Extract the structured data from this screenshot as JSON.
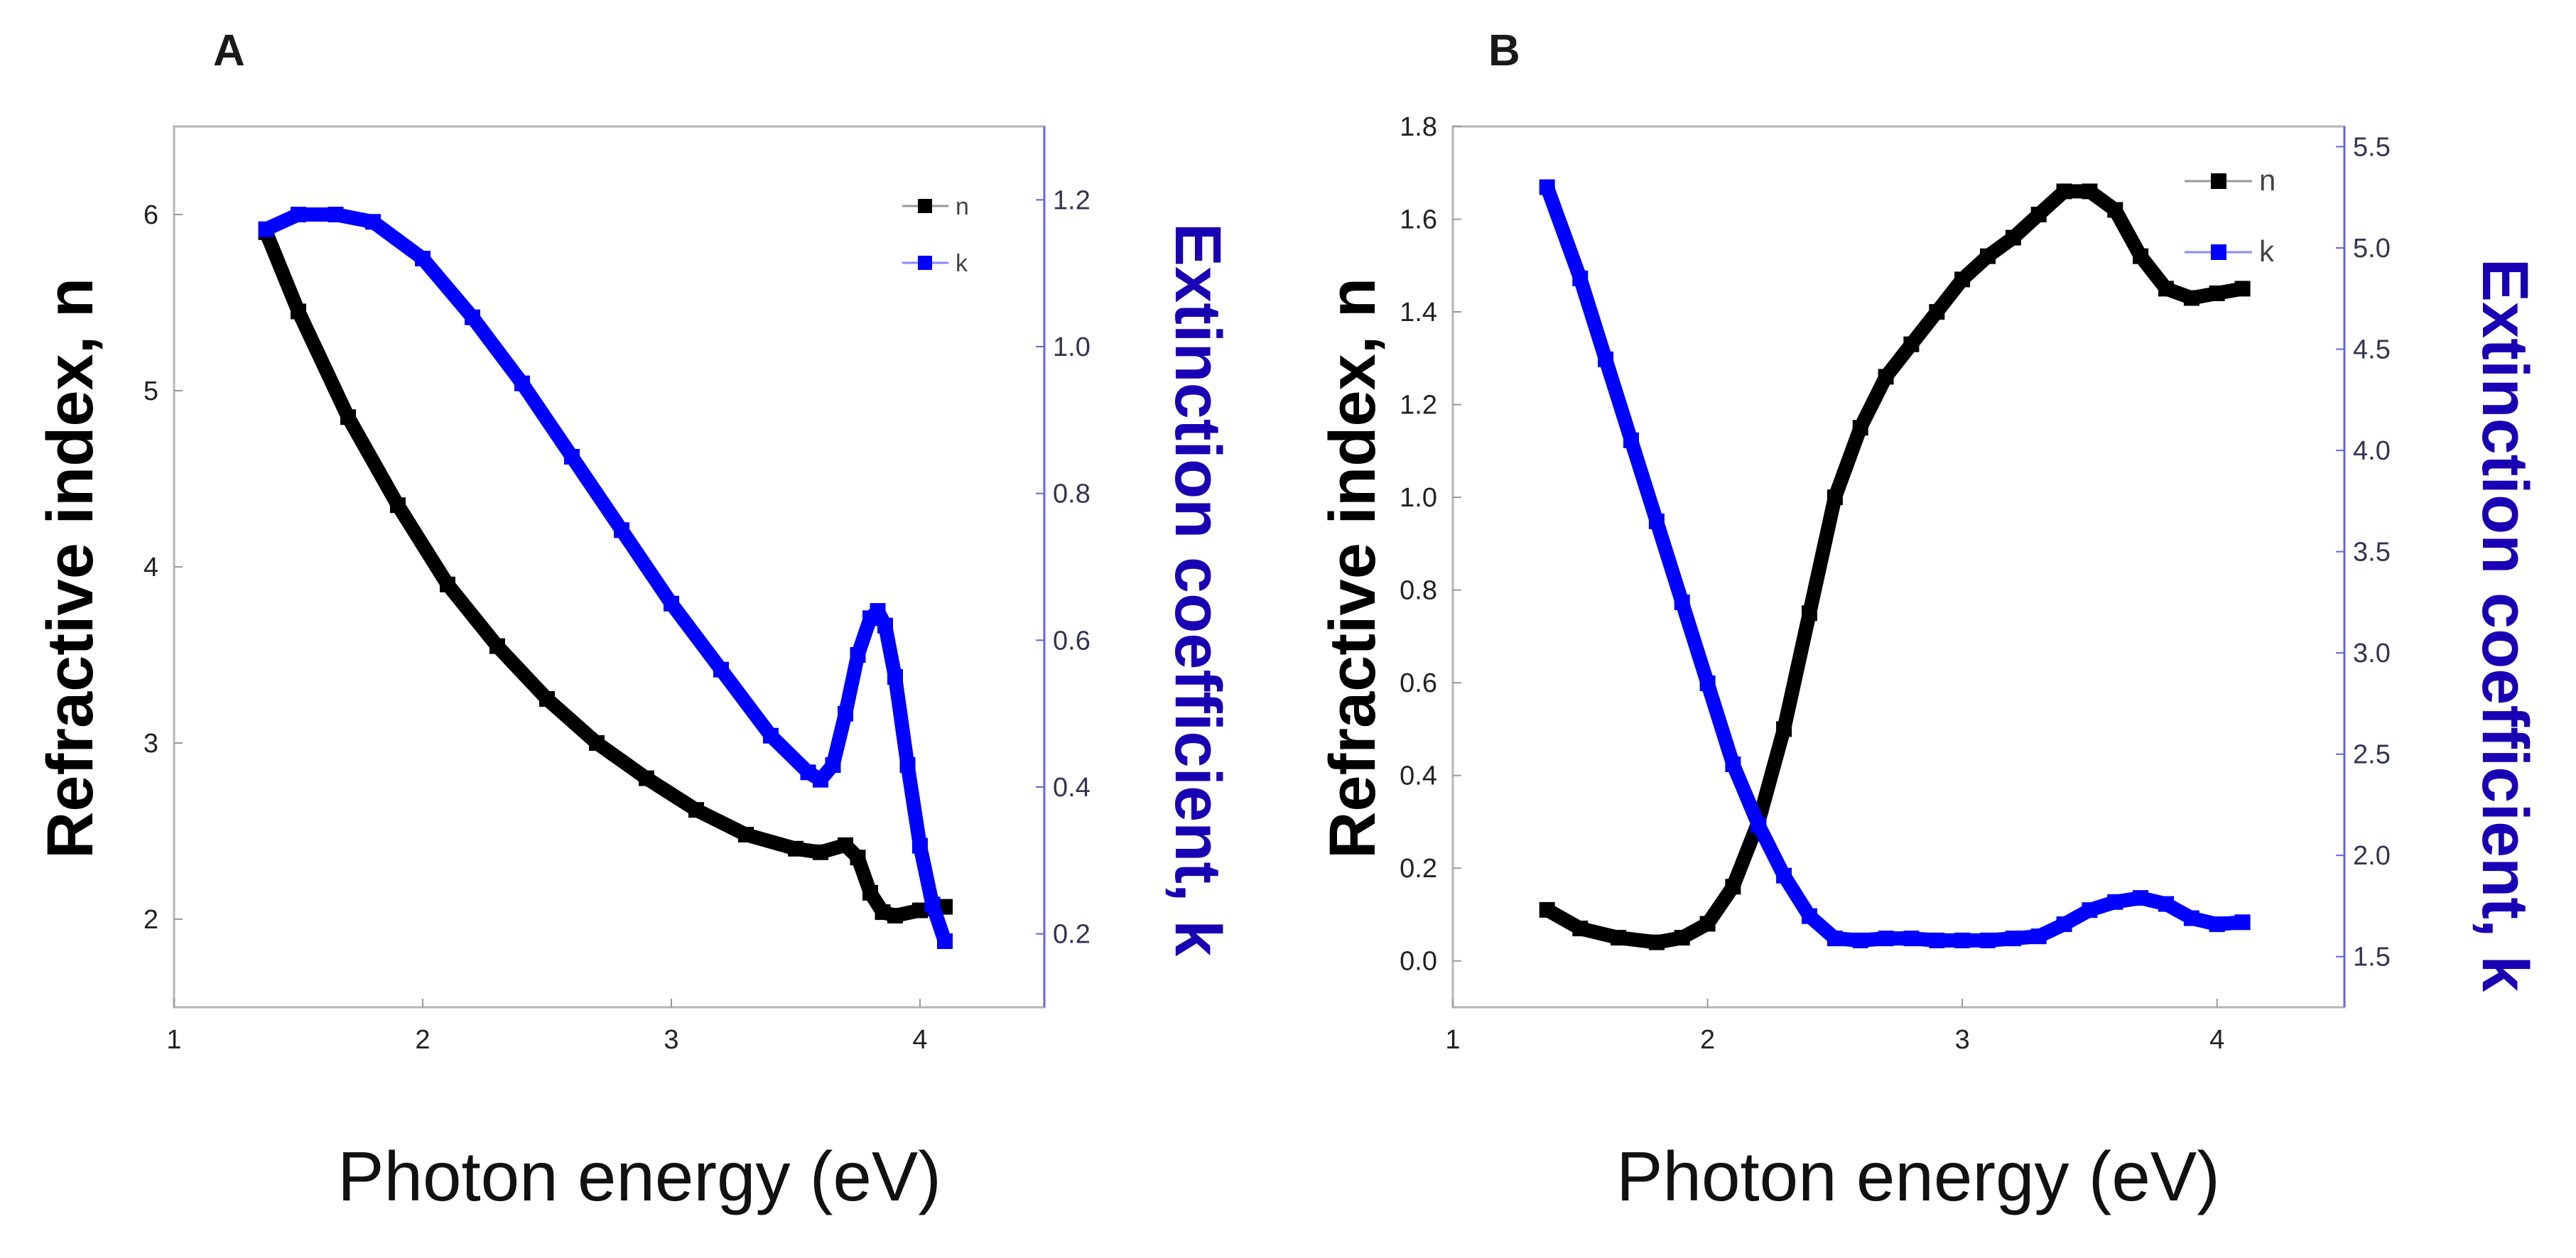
{
  "colors": {
    "n": "#000000",
    "k": "#0000ff",
    "k_axis": "#1a00b4",
    "frame": "#b5b5b5",
    "right_axis": "#6666dd"
  },
  "chart_data": [
    {
      "type": "line",
      "panel_label": "A",
      "xlabel": "Photon energy (eV)",
      "ylabel_left": "Refractive index, n",
      "ylabel_right": "Extinction coefficient, k",
      "xlim": [
        1,
        4.5
      ],
      "ylim_left": [
        1.5,
        6.5
      ],
      "ylim_right": [
        0.1,
        1.3
      ],
      "x_ticks": [
        1,
        2,
        3,
        4
      ],
      "x_tick_labels": [
        "1",
        "2",
        "3",
        "4"
      ],
      "y_left_ticks": [
        2,
        3,
        4,
        5,
        6
      ],
      "y_left_tick_labels": [
        "2",
        "3",
        "4",
        "5",
        "6"
      ],
      "y_right_ticks": [
        0.2,
        0.4,
        0.6,
        0.8,
        1.0,
        1.2
      ],
      "y_right_tick_labels": [
        "0.2",
        "0.4",
        "0.6",
        "0.8",
        "1.0",
        "1.2"
      ],
      "legend": [
        "n",
        "k"
      ],
      "legend_position": "top-right",
      "series": [
        {
          "name": "n",
          "axis": "left",
          "x": [
            1.37,
            1.5,
            1.7,
            1.9,
            2.1,
            2.3,
            2.5,
            2.7,
            2.9,
            3.1,
            3.3,
            3.5,
            3.6,
            3.7,
            3.75,
            3.8,
            3.85,
            3.9,
            4.0,
            4.1
          ],
          "y": [
            5.9,
            5.45,
            4.85,
            4.35,
            3.9,
            3.55,
            3.25,
            3.0,
            2.8,
            2.62,
            2.48,
            2.4,
            2.38,
            2.42,
            2.35,
            2.15,
            2.04,
            2.02,
            2.05,
            2.07
          ]
        },
        {
          "name": "k",
          "axis": "right",
          "x": [
            1.37,
            1.5,
            1.65,
            1.8,
            2.0,
            2.2,
            2.4,
            2.6,
            2.8,
            3.0,
            3.2,
            3.4,
            3.55,
            3.6,
            3.65,
            3.7,
            3.75,
            3.8,
            3.83,
            3.86,
            3.9,
            3.95,
            4.0,
            4.05,
            4.1
          ],
          "y": [
            1.16,
            1.18,
            1.18,
            1.17,
            1.12,
            1.04,
            0.95,
            0.85,
            0.75,
            0.65,
            0.56,
            0.47,
            0.42,
            0.41,
            0.43,
            0.5,
            0.58,
            0.63,
            0.64,
            0.62,
            0.55,
            0.43,
            0.32,
            0.24,
            0.19
          ]
        }
      ]
    },
    {
      "type": "line",
      "panel_label": "B",
      "xlabel": "Photon energy (eV)",
      "ylabel_left": "Refractive index, n",
      "ylabel_right": "Extinction coefficient, k",
      "xlim": [
        1,
        4.5
      ],
      "ylim_left": [
        -0.1,
        1.8
      ],
      "ylim_right": [
        1.25,
        5.6
      ],
      "x_ticks": [
        1,
        2,
        3,
        4
      ],
      "x_tick_labels": [
        "1",
        "2",
        "3",
        "4"
      ],
      "y_left_ticks": [
        0.0,
        0.2,
        0.4,
        0.6,
        0.8,
        1.0,
        1.2,
        1.4,
        1.6,
        1.8
      ],
      "y_left_tick_labels": [
        "0.0",
        "0.2",
        "0.4",
        "0.6",
        "0.8",
        "1.0",
        "1.2",
        "1.4",
        "1.6",
        "1.8"
      ],
      "y_right_ticks": [
        1.5,
        2.0,
        2.5,
        3.0,
        3.5,
        4.0,
        4.5,
        5.0,
        5.5
      ],
      "y_right_tick_labels": [
        "1.5",
        "2.0",
        "2.5",
        "3.0",
        "3.5",
        "4.0",
        "4.5",
        "5.0",
        "5.5"
      ],
      "legend": [
        "n",
        "k"
      ],
      "legend_position": "top-right",
      "series": [
        {
          "name": "n",
          "axis": "left",
          "x": [
            1.37,
            1.5,
            1.65,
            1.8,
            1.9,
            2.0,
            2.1,
            2.2,
            2.3,
            2.4,
            2.5,
            2.6,
            2.7,
            2.8,
            2.9,
            3.0,
            3.1,
            3.2,
            3.3,
            3.4,
            3.5,
            3.6,
            3.7,
            3.8,
            3.9,
            4.0,
            4.1
          ],
          "y": [
            0.11,
            0.07,
            0.05,
            0.04,
            0.05,
            0.08,
            0.16,
            0.3,
            0.5,
            0.75,
            1.0,
            1.15,
            1.26,
            1.33,
            1.4,
            1.47,
            1.52,
            1.56,
            1.61,
            1.66,
            1.66,
            1.62,
            1.52,
            1.45,
            1.43,
            1.44,
            1.45
          ]
        },
        {
          "name": "k",
          "axis": "right",
          "x": [
            1.37,
            1.5,
            1.6,
            1.7,
            1.8,
            1.9,
            2.0,
            2.1,
            2.2,
            2.3,
            2.4,
            2.5,
            2.6,
            2.7,
            2.8,
            2.9,
            3.0,
            3.1,
            3.2,
            3.3,
            3.4,
            3.5,
            3.6,
            3.7,
            3.8,
            3.9,
            4.0,
            4.1
          ],
          "y": [
            5.3,
            4.85,
            4.45,
            4.05,
            3.65,
            3.25,
            2.85,
            2.45,
            2.15,
            1.9,
            1.7,
            1.59,
            1.58,
            1.59,
            1.59,
            1.58,
            1.58,
            1.58,
            1.59,
            1.6,
            1.66,
            1.73,
            1.77,
            1.79,
            1.76,
            1.69,
            1.66,
            1.67
          ]
        }
      ]
    }
  ]
}
